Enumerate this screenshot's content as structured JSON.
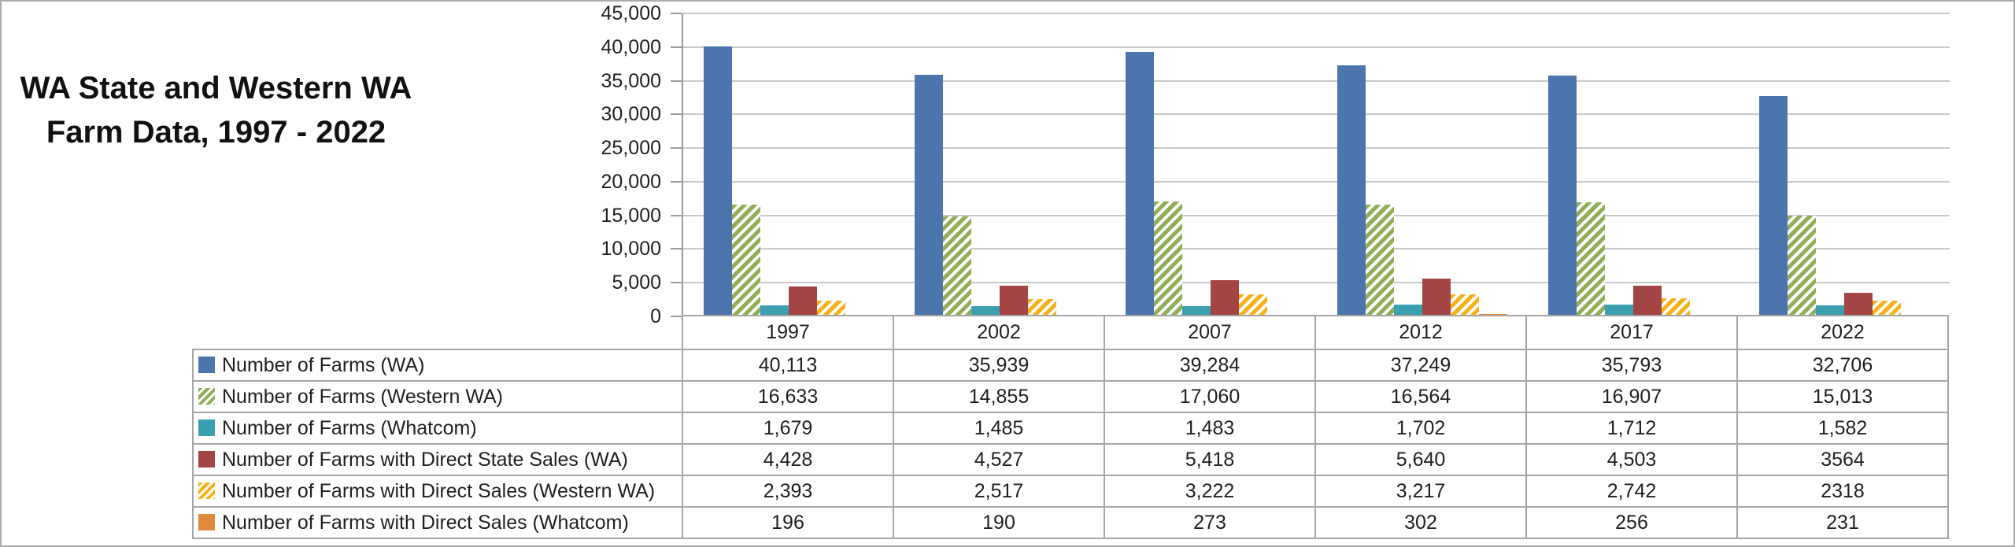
{
  "title": {
    "line1": "WA State and Western WA",
    "line2": "Farm Data, 1997 - 2022"
  },
  "colors": {
    "axis": "#9b9b9b",
    "gridline": "#c9c9c9",
    "table_border": "#a6a6a6",
    "frame_border": "#ababab",
    "text": "#1f1f1f"
  },
  "chart_data": {
    "type": "bar",
    "title": "WA State and Western WA Farm Data, 1997 - 2022",
    "categories": [
      "1997",
      "2002",
      "2007",
      "2012",
      "2017",
      "2022"
    ],
    "series": [
      {
        "name": "Number of Farms (WA)",
        "values": [
          40113,
          35939,
          39284,
          37249,
          35793,
          32706
        ],
        "display": [
          "40,113",
          "35,939",
          "39,284",
          "37,249",
          "35,793",
          "32,706"
        ],
        "color": "#4b75ac",
        "pattern": "solid"
      },
      {
        "name": "Number of Farms (Western WA)",
        "values": [
          16633,
          14855,
          17060,
          16564,
          16907,
          15013
        ],
        "display": [
          "16,633",
          "14,855",
          "17,060",
          "16,564",
          "16,907",
          "15,013"
        ],
        "color": "#8fae55",
        "pattern": "diagonal-stripes"
      },
      {
        "name": "Number of Farms (Whatcom)",
        "values": [
          1679,
          1485,
          1483,
          1702,
          1712,
          1582
        ],
        "display": [
          "1,679",
          "1,485",
          "1,483",
          "1,702",
          "1,712",
          "1,582"
        ],
        "color": "#3aa0af",
        "pattern": "solid"
      },
      {
        "name": "Number of Farms with Direct State Sales (WA)",
        "values": [
          4428,
          4527,
          5418,
          5640,
          4503,
          3564
        ],
        "display": [
          "4,428",
          "4,527",
          "5,418",
          "5,640",
          "4,503",
          "3564"
        ],
        "color": "#a44545",
        "pattern": "solid"
      },
      {
        "name": "Number of Farms with Direct Sales (Western WA)",
        "values": [
          2393,
          2517,
          3222,
          3217,
          2742,
          2318
        ],
        "display": [
          "2,393",
          "2,517",
          "3,222",
          "3,217",
          "2,742",
          "2318"
        ],
        "color": "#f6b117",
        "pattern": "diagonal-stripes"
      },
      {
        "name": "Number of Farms with Direct Sales (Whatcom)",
        "values": [
          196,
          190,
          273,
          302,
          256,
          231
        ],
        "display": [
          "196",
          "190",
          "273",
          "302",
          "256",
          "231"
        ],
        "color": "#e08a3c",
        "pattern": "solid"
      }
    ],
    "ylim": [
      0,
      45000
    ],
    "ytick_interval": 5000,
    "yticks": [
      "45,000",
      "40,000",
      "35,000",
      "30,000",
      "25,000",
      "20,000",
      "15,000",
      "10,000",
      "5,000",
      "0"
    ],
    "grid": true,
    "legend_position": "data-table-rows-left"
  }
}
